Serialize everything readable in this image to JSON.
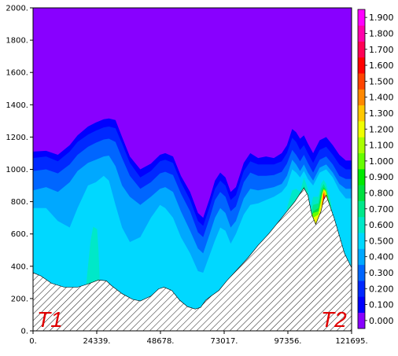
{
  "chart_data": {
    "type": "area",
    "xlim": [
      0,
      121695
    ],
    "ylim": [
      0,
      2000
    ],
    "x_ticks": [
      "0.",
      "24339.",
      "48678.",
      "73017.",
      "97356.",
      "121695."
    ],
    "y_ticks": [
      "0.",
      "200.",
      "400.",
      "600.",
      "800.",
      "1000.",
      "1200.",
      "1400.",
      "1600.",
      "1800.",
      "2000."
    ],
    "y_tick_values": [
      0,
      200,
      400,
      600,
      800,
      1000,
      1200,
      1400,
      1600,
      1800,
      2000
    ],
    "x_tick_values": [
      0,
      24339,
      48678,
      73017,
      97356,
      121695
    ],
    "corner_labels": [
      "T1",
      "T2"
    ],
    "background_level_color": "#8800ff",
    "colorbar": {
      "labels": [
        "0.000",
        "0.100",
        "0.200",
        "0.300",
        "0.400",
        "0.500",
        "0.600",
        "0.700",
        "0.800",
        "0.900",
        "1.000",
        "1.100",
        "1.200",
        "1.300",
        "1.400",
        "1.500",
        "1.600",
        "1.700",
        "1.800",
        "1.900"
      ],
      "colors": [
        "#8800ff",
        "#0000ff",
        "#0028ff",
        "#0066ff",
        "#00a8ff",
        "#00d8ff",
        "#00e8c8",
        "#00e88a",
        "#00e040",
        "#00ea00",
        "#66ff00",
        "#aaff00",
        "#f0ff00",
        "#ffc800",
        "#ff8800",
        "#ff4400",
        "#ff0000",
        "#ff0055",
        "#ff00aa",
        "#ff00ff"
      ]
    },
    "bands": [
      {
        "level": "0.100",
        "color": "#0000ff",
        "x": [
          0,
          5000,
          9500,
          14000,
          17000,
          21000,
          24000,
          27000,
          29000,
          31500,
          34000,
          37000,
          41000,
          45000,
          48500,
          50500,
          53500,
          56500,
          60000,
          63000,
          65000,
          67500,
          69500,
          71500,
          73500,
          75500,
          77500,
          80500,
          83000,
          86000,
          89000,
          92000,
          95000,
          97000,
          99000,
          100500,
          102000,
          103500,
          105000,
          107000,
          109500,
          112000,
          114500,
          117000,
          119500,
          121695
        ],
        "y": [
          1110,
          1115,
          1090,
          1150,
          1210,
          1265,
          1290,
          1310,
          1315,
          1305,
          1200,
          1080,
          1000,
          1035,
          1090,
          1100,
          1080,
          960,
          860,
          730,
          700,
          820,
          930,
          980,
          950,
          860,
          890,
          1040,
          1100,
          1070,
          1080,
          1070,
          1100,
          1150,
          1250,
          1230,
          1190,
          1210,
          1160,
          1100,
          1180,
          1200,
          1150,
          1090,
          1055,
          1055
        ]
      },
      {
        "level": "0.200",
        "color": "#0028ff",
        "x": [
          0,
          5000,
          9500,
          14000,
          17000,
          21000,
          24000,
          27000,
          29000,
          31500,
          34000,
          37000,
          41000,
          45000,
          48500,
          50500,
          53500,
          56500,
          60000,
          63000,
          65000,
          67500,
          69500,
          71500,
          73500,
          75500,
          77500,
          80500,
          83000,
          86000,
          89000,
          92000,
          95000,
          97000,
          99000,
          100500,
          102000,
          103500,
          105000,
          107000,
          109500,
          112000,
          114500,
          117000,
          119500,
          121695
        ],
        "y": [
          1070,
          1080,
          1050,
          1110,
          1170,
          1215,
          1240,
          1260,
          1265,
          1255,
          1160,
          1040,
          950,
          990,
          1050,
          1060,
          1040,
          920,
          810,
          680,
          650,
          770,
          880,
          930,
          900,
          810,
          840,
          990,
          1050,
          1030,
          1030,
          1030,
          1050,
          1100,
          1195,
          1170,
          1120,
          1150,
          1100,
          1040,
          1120,
          1140,
          1090,
          1030,
          1000,
          1000
        ]
      },
      {
        "level": "0.300",
        "color": "#0066ff",
        "x": [
          0,
          5000,
          9500,
          14000,
          17000,
          21000,
          24000,
          27000,
          29000,
          31500,
          34000,
          37000,
          41000,
          45000,
          48500,
          50500,
          53500,
          56500,
          60000,
          63000,
          65000,
          67500,
          69500,
          71500,
          73500,
          75500,
          77500,
          80500,
          83000,
          86000,
          89000,
          92000,
          95000,
          97000,
          99000,
          100500,
          102000,
          103500,
          105000,
          107000,
          109500,
          112000,
          114500,
          117000,
          119500,
          121695
        ],
        "y": [
          990,
          1000,
          975,
          1030,
          1090,
          1140,
          1165,
          1185,
          1190,
          1170,
          1070,
          960,
          880,
          920,
          975,
          985,
          965,
          850,
          740,
          610,
          580,
          700,
          810,
          860,
          830,
          740,
          770,
          920,
          980,
          960,
          960,
          965,
          985,
          1035,
          1120,
          1090,
          1050,
          1090,
          1040,
          980,
          1060,
          1080,
          1030,
          960,
          940,
          940
        ]
      },
      {
        "level": "0.400",
        "color": "#00a8ff",
        "x": [
          0,
          5000,
          9500,
          14000,
          17000,
          21000,
          24000,
          27000,
          29000,
          31500,
          34000,
          37000,
          41000,
          45000,
          48500,
          50500,
          53500,
          56500,
          60000,
          63000,
          65000,
          67500,
          69500,
          71500,
          73500,
          75500,
          77500,
          80500,
          83000,
          86000,
          89000,
          92000,
          95000,
          97000,
          99000,
          100500,
          102000,
          103500,
          105000,
          107000,
          109500,
          112000,
          114500,
          117000,
          119500,
          121695
        ],
        "y": [
          870,
          890,
          860,
          920,
          990,
          1040,
          1060,
          1080,
          1085,
          1020,
          900,
          830,
          780,
          830,
          880,
          890,
          860,
          740,
          620,
          510,
          480,
          600,
          700,
          760,
          730,
          640,
          680,
          820,
          880,
          870,
          880,
          890,
          910,
          960,
          1060,
          1030,
          990,
          1030,
          980,
          930,
          1010,
          1030,
          980,
          910,
          880,
          880
        ]
      },
      {
        "level": "0.500",
        "color": "#00d8ff",
        "x": [
          0,
          5000,
          9500,
          14000,
          17000,
          21000,
          24000,
          27000,
          29000,
          31500,
          34000,
          37000,
          41000,
          45000,
          48500,
          50500,
          53500,
          56500,
          60000,
          63000,
          65000,
          67500,
          69500,
          71500,
          73500,
          75500,
          77500,
          80500,
          83000,
          86000,
          89000,
          92000,
          95000,
          97000,
          99000,
          100500,
          102000,
          103500,
          105000,
          107000,
          109500,
          112000,
          114500,
          117000,
          119500,
          121695
        ],
        "y": [
          760,
          760,
          680,
          640,
          760,
          900,
          920,
          960,
          930,
          780,
          640,
          550,
          580,
          700,
          780,
          760,
          700,
          580,
          480,
          370,
          360,
          470,
          560,
          640,
          620,
          540,
          600,
          720,
          780,
          790,
          810,
          830,
          860,
          900,
          1000,
          980,
          950,
          990,
          940,
          900,
          980,
          1000,
          950,
          870,
          820,
          820
        ]
      },
      {
        "level": "0.600",
        "color": "#00e8c8",
        "x": [
          0,
          10000,
          19000,
          20500,
          22000,
          23000,
          24500,
          25000,
          25500,
          26000,
          95000,
          97000,
          99000,
          100500,
          102000,
          103500,
          105000,
          106000,
          107000,
          109000,
          110000,
          111000,
          112000,
          113500,
          114500,
          121695
        ],
        "y": [
          0,
          0,
          0,
          320,
          560,
          645,
          630,
          500,
          300,
          0,
          0,
          760,
          870,
          880,
          860,
          950,
          880,
          760,
          830,
          830,
          910,
          935,
          910,
          820,
          720,
          0
        ]
      },
      {
        "level": "0.700",
        "color": "#00e88a",
        "x": [
          99000,
          100500,
          102000,
          103500,
          105000,
          106000,
          107000,
          109000,
          110000,
          111000,
          112000,
          113500,
          114500,
          121695
        ],
        "y": [
          700,
          800,
          820,
          900,
          820,
          700,
          780,
          790,
          880,
          910,
          880,
          790,
          700,
          0
        ]
      },
      {
        "level": "0.800",
        "color": "#00e040",
        "x": [
          101000,
          102500,
          103500,
          105000,
          106000,
          107000,
          109000,
          110000,
          111000,
          112000,
          113500,
          114500,
          121695
        ],
        "y": [
          690,
          770,
          860,
          780,
          680,
          740,
          760,
          850,
          890,
          870,
          770,
          690,
          0
        ]
      },
      {
        "level": "1.000",
        "color": "#66ff00",
        "x": [
          103000,
          104000,
          104800,
          106000,
          107000,
          109000,
          110000,
          111000,
          112000,
          113000,
          114500,
          121695
        ],
        "y": [
          700,
          820,
          760,
          690,
          730,
          740,
          820,
          880,
          870,
          800,
          700,
          0
        ]
      },
      {
        "level": "1.200",
        "color": "#f0ff00",
        "x": [
          104200,
          104800,
          105800,
          107000,
          109000,
          110000,
          110500,
          111000,
          111800,
          121695
        ],
        "y": [
          710,
          780,
          700,
          700,
          720,
          800,
          850,
          875,
          860,
          0
        ]
      },
      {
        "level": "1.300",
        "color": "#ffc800",
        "x": [
          110200,
          110600,
          111000,
          111600,
          121695
        ],
        "y": [
          790,
          840,
          870,
          855,
          0
        ]
      },
      {
        "level": "1.400",
        "color": "#ff8800",
        "x": [
          110400,
          110800,
          111200,
          121695
        ],
        "y": [
          780,
          830,
          860,
          0
        ]
      },
      {
        "level": "1.600",
        "color": "#ff0000",
        "x": [
          110700,
          111000,
          121695
        ],
        "y": [
          780,
          855,
          0
        ]
      }
    ],
    "terrain": {
      "x": [
        0,
        3000,
        7000,
        12000,
        17000,
        21000,
        25000,
        28000,
        30000,
        34000,
        38000,
        41000,
        45000,
        48000,
        50000,
        53000,
        56000,
        59000,
        62000,
        64000,
        66000,
        68000,
        71000,
        74000,
        78000,
        82000,
        86000,
        90000,
        94000,
        97000,
        100000,
        102000,
        103500,
        105000,
        106500,
        108000,
        110000,
        111000,
        112000,
        113500,
        115000,
        117000,
        119000,
        121695
      ],
      "y": [
        360,
        340,
        295,
        270,
        270,
        290,
        315,
        310,
        280,
        230,
        195,
        185,
        215,
        260,
        270,
        250,
        190,
        150,
        135,
        145,
        190,
        215,
        250,
        310,
        380,
        450,
        530,
        600,
        680,
        740,
        800,
        850,
        885,
        840,
        720,
        660,
        740,
        810,
        840,
        770,
        700,
        590,
        480,
        390
      ]
    }
  }
}
